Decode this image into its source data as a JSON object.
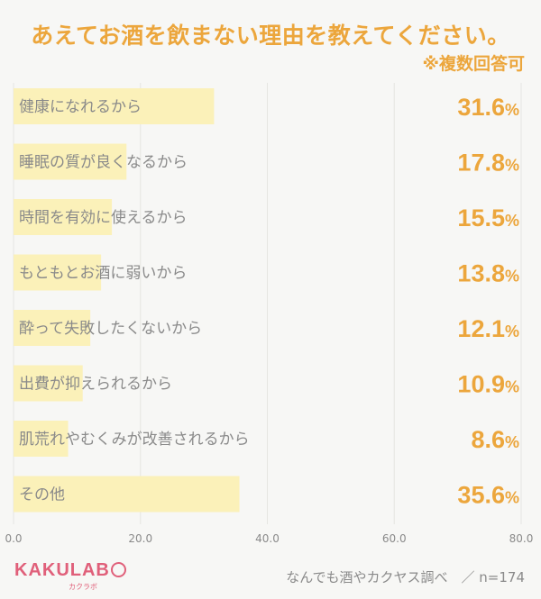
{
  "chart_data": {
    "type": "bar",
    "orientation": "horizontal",
    "title": "あえてお酒を飲まない理由を教えてください。",
    "subtitle": "※複数回答可",
    "categories": [
      "健康になれるから",
      "睡眠の質が良くなるから",
      "時間を有効に使えるから",
      "もともとお酒に弱いから",
      "酔って失敗したくないから",
      "出費が抑えられるから",
      "肌荒れやむくみが改善されるから",
      "その他"
    ],
    "values": [
      31.6,
      17.8,
      15.5,
      13.8,
      12.1,
      10.9,
      8.6,
      35.6
    ],
    "value_labels": [
      "31.6",
      "17.8",
      "15.5",
      "13.8",
      "12.1",
      "10.9",
      "8.6",
      "35.6"
    ],
    "value_suffix": "%",
    "xlim": [
      0,
      80
    ],
    "x_ticks": [
      "0.0",
      "20.0",
      "40.0",
      "60.0",
      "80.0"
    ],
    "x_tick_values": [
      0,
      20,
      40,
      60,
      80
    ],
    "grid": true,
    "bar_color": "#fbf1b9",
    "value_color": "#eca63c"
  },
  "brand": {
    "logo_text": "KAKULAB",
    "logo_subtext": "カクラボ",
    "color": "#e0607a"
  },
  "footer": {
    "source": "なんでも酒やカクヤス調べ　／ n=174"
  }
}
